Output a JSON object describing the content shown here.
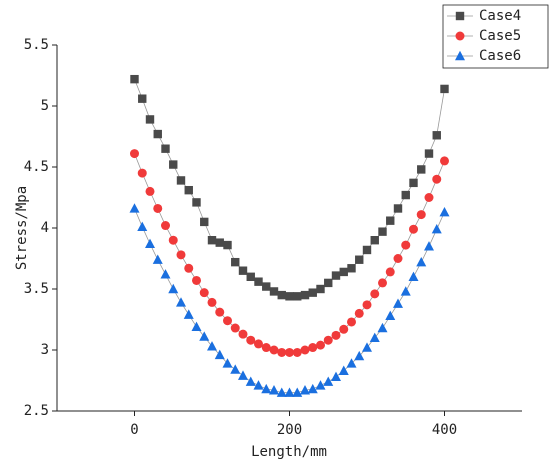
{
  "chart_data": {
    "type": "line",
    "x_label": "Length/mm",
    "y_label": "Stress/Mpa",
    "x": [
      0,
      10,
      20,
      30,
      40,
      50,
      60,
      70,
      80,
      90,
      100,
      110,
      120,
      130,
      140,
      150,
      160,
      170,
      180,
      190,
      200,
      210,
      220,
      230,
      240,
      250,
      260,
      270,
      280,
      290,
      300,
      310,
      320,
      330,
      340,
      350,
      360,
      370,
      380,
      390,
      400
    ],
    "series": [
      {
        "name": "Case4",
        "color": "#4a4a4a",
        "marker": "square",
        "values": [
          5.22,
          5.06,
          4.89,
          4.77,
          4.65,
          4.52,
          4.39,
          4.31,
          4.21,
          4.05,
          3.9,
          3.88,
          3.86,
          3.72,
          3.65,
          3.6,
          3.56,
          3.52,
          3.48,
          3.45,
          3.44,
          3.44,
          3.45,
          3.47,
          3.5,
          3.55,
          3.61,
          3.64,
          3.67,
          3.74,
          3.82,
          3.9,
          3.97,
          4.06,
          4.16,
          4.27,
          4.37,
          4.48,
          4.61,
          4.76,
          5.14
        ]
      },
      {
        "name": "Case5",
        "color": "#f03a3a",
        "marker": "circle",
        "values": [
          4.61,
          4.45,
          4.3,
          4.16,
          4.02,
          3.9,
          3.78,
          3.67,
          3.57,
          3.47,
          3.39,
          3.31,
          3.24,
          3.18,
          3.13,
          3.08,
          3.05,
          3.02,
          3.0,
          2.98,
          2.98,
          2.98,
          3.0,
          3.02,
          3.04,
          3.08,
          3.12,
          3.17,
          3.23,
          3.3,
          3.37,
          3.46,
          3.55,
          3.64,
          3.75,
          3.86,
          3.99,
          4.11,
          4.25,
          4.4,
          4.55
        ]
      },
      {
        "name": "Case6",
        "color": "#1a6fdf",
        "marker": "triangle",
        "values": [
          4.16,
          4.01,
          3.87,
          3.74,
          3.62,
          3.5,
          3.39,
          3.29,
          3.19,
          3.11,
          3.03,
          2.96,
          2.89,
          2.84,
          2.79,
          2.74,
          2.71,
          2.68,
          2.67,
          2.65,
          2.65,
          2.65,
          2.67,
          2.68,
          2.71,
          2.74,
          2.78,
          2.83,
          2.89,
          2.95,
          3.02,
          3.1,
          3.18,
          3.28,
          3.38,
          3.48,
          3.6,
          3.72,
          3.85,
          3.99,
          4.13
        ]
      }
    ],
    "xlim": [
      -100,
      500
    ],
    "xticks": [
      0,
      200,
      400
    ],
    "ylim": [
      2.5,
      5.5
    ],
    "yticks": [
      2.5,
      3.0,
      {
        "value": 3.5,
        "label": "3.5"
      },
      4.0,
      4.5,
      5.0,
      5.5
    ],
    "legend": "top-right",
    "grid": false
  }
}
